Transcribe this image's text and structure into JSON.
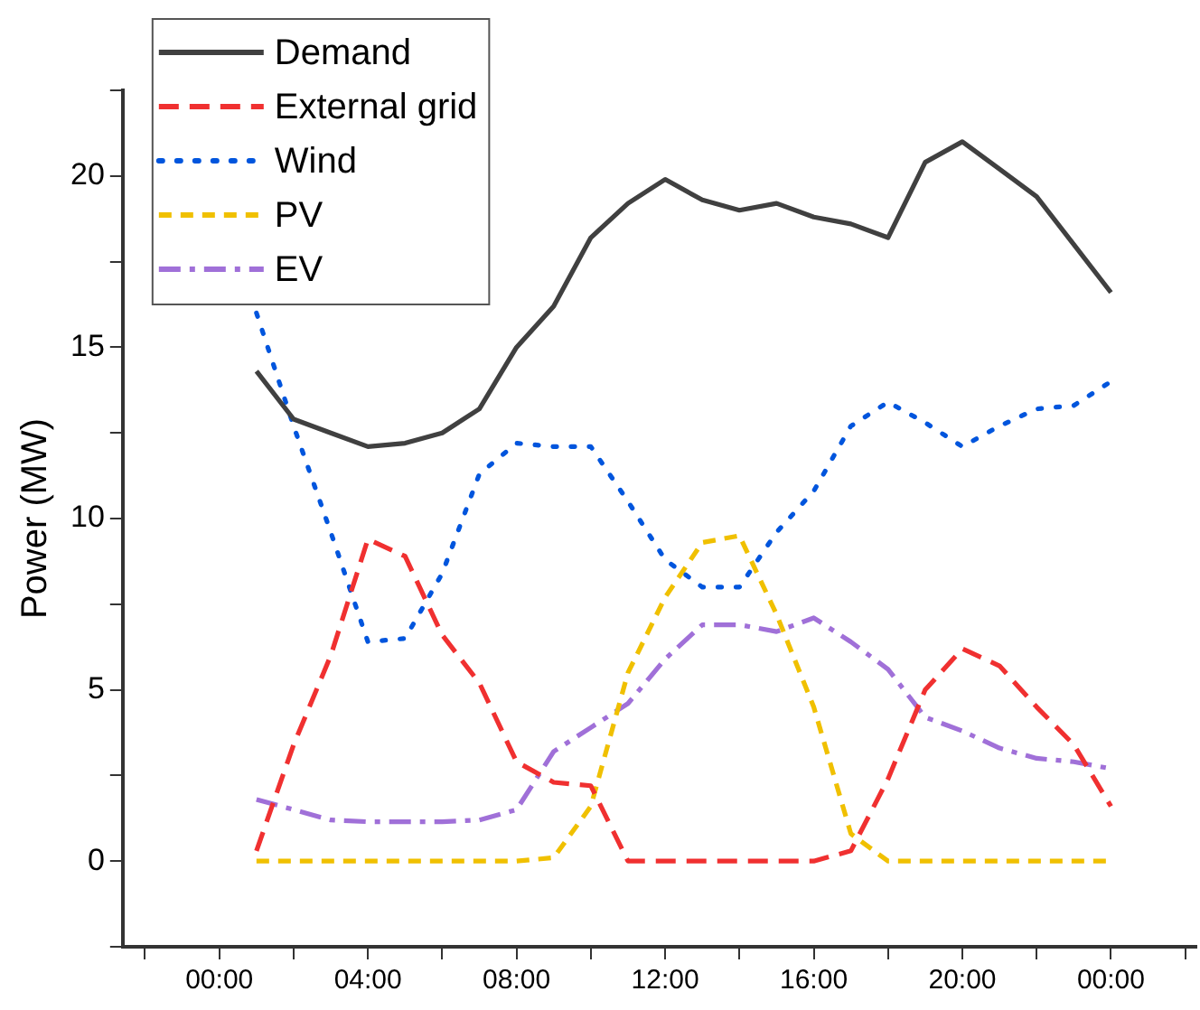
{
  "chart_data": {
    "type": "line",
    "ylabel": "Power (MW)",
    "x": [
      1,
      2,
      3,
      4,
      5,
      6,
      7,
      8,
      9,
      10,
      11,
      12,
      13,
      14,
      15,
      16,
      17,
      18,
      19,
      20,
      21,
      22,
      23,
      24
    ],
    "xlim": [
      -2.6,
      26.3
    ],
    "xticks": [
      {
        "value": -2,
        "label": null
      },
      {
        "value": 0,
        "label": "00:00"
      },
      {
        "value": 2,
        "label": null
      },
      {
        "value": 4,
        "label": "04:00"
      },
      {
        "value": 6,
        "label": null
      },
      {
        "value": 8,
        "label": "08:00"
      },
      {
        "value": 10,
        "label": null
      },
      {
        "value": 12,
        "label": "12:00"
      },
      {
        "value": 14,
        "label": null
      },
      {
        "value": 16,
        "label": "16:00"
      },
      {
        "value": 18,
        "label": null
      },
      {
        "value": 20,
        "label": "20:00"
      },
      {
        "value": 22,
        "label": null
      },
      {
        "value": 24,
        "label": "00:00"
      },
      {
        "value": 26,
        "label": null
      }
    ],
    "ylim": [
      -2.5,
      22.5
    ],
    "yticks": [
      {
        "value": -2.5,
        "label": null
      },
      0,
      {
        "value": 2.5,
        "label": null
      },
      5,
      {
        "value": 7.5,
        "label": null
      },
      10,
      {
        "value": 12.5,
        "label": null
      },
      15,
      {
        "value": 17.5,
        "label": null
      },
      20,
      {
        "value": 22.5,
        "label": null
      }
    ],
    "grid": false,
    "legend": "top left",
    "marker": "none",
    "series": [
      {
        "name": "Demand",
        "color": "#404040",
        "line_style": "solid",
        "values": [
          14.3,
          12.9,
          12.5,
          12.1,
          12.2,
          12.5,
          13.2,
          15.0,
          16.2,
          18.2,
          19.2,
          19.9,
          19.3,
          19.0,
          19.2,
          18.8,
          18.6,
          18.2,
          20.4,
          21.0,
          20.2,
          19.4,
          18.0,
          16.6
        ]
      },
      {
        "name": "External grid",
        "color": "#f03030",
        "line_style": "dashed",
        "values": [
          0.3,
          3.4,
          6.0,
          9.4,
          8.9,
          6.6,
          5.2,
          2.9,
          2.3,
          2.2,
          0,
          0,
          0,
          0,
          0,
          0,
          0.3,
          2.4,
          5.0,
          6.2,
          5.7,
          4.5,
          3.4,
          1.6
        ]
      },
      {
        "name": "Wind",
        "color": "#0055dd",
        "line_style": "dotted",
        "values": [
          16.0,
          12.7,
          9.6,
          6.4,
          6.5,
          8.4,
          11.3,
          12.2,
          12.1,
          12.1,
          10.5,
          8.8,
          8.0,
          8.0,
          9.6,
          10.8,
          12.7,
          13.4,
          12.8,
          12.1,
          12.7,
          13.2,
          13.3,
          14.0
        ]
      },
      {
        "name": "PV",
        "color": "#f0c000",
        "line_style": "dashed",
        "values": [
          0,
          0,
          0,
          0,
          0,
          0,
          0,
          0,
          0.1,
          1.6,
          5.5,
          7.7,
          9.3,
          9.5,
          7.2,
          4.5,
          0.8,
          0,
          0,
          0,
          0,
          0,
          0,
          0
        ]
      },
      {
        "name": "EV",
        "color": "#a070d8",
        "line_style": "dashdot",
        "values": [
          1.8,
          1.5,
          1.2,
          1.15,
          1.15,
          1.15,
          1.2,
          1.5,
          3.2,
          3.9,
          4.6,
          5.9,
          6.9,
          6.9,
          6.7,
          7.1,
          6.4,
          5.6,
          4.2,
          3.8,
          3.3,
          3.0,
          2.9,
          2.7
        ]
      }
    ]
  }
}
